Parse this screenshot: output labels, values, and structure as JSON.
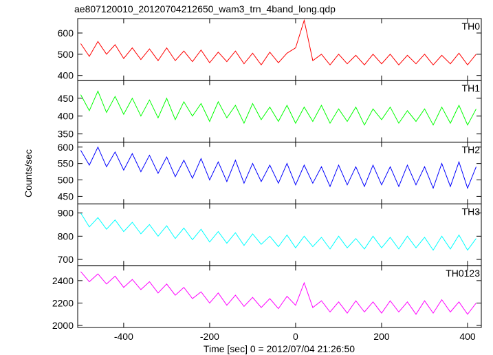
{
  "chart_data": {
    "type": "line",
    "title": "ae807120010_20120704212650_wam3_trn_4band_long.qdp",
    "xlabel": "Time [sec] 0 = 2012/07/04 21:26:50",
    "ylabel": "Counts/sec",
    "xlim": [
      -507,
      432
    ],
    "xticks": [
      -400,
      -200,
      0,
      200,
      400
    ],
    "x": [
      -500,
      -480,
      -460,
      -440,
      -420,
      -400,
      -380,
      -360,
      -340,
      -320,
      -300,
      -280,
      -260,
      -240,
      -220,
      -200,
      -180,
      -160,
      -140,
      -120,
      -100,
      -80,
      -60,
      -40,
      -20,
      0,
      20,
      40,
      60,
      80,
      100,
      120,
      140,
      160,
      180,
      200,
      220,
      240,
      260,
      280,
      300,
      320,
      340,
      360,
      380,
      400,
      420
    ],
    "series": [
      {
        "name": "TH0",
        "color": "#ff0000",
        "ylim": [
          377,
          668
        ],
        "yticks": [
          400,
          500,
          600
        ],
        "values": [
          550,
          490,
          560,
          500,
          545,
          480,
          530,
          475,
          525,
          470,
          530,
          470,
          515,
          465,
          520,
          460,
          510,
          465,
          515,
          455,
          505,
          450,
          510,
          460,
          505,
          530,
          660,
          470,
          500,
          450,
          500,
          455,
          495,
          450,
          500,
          455,
          500,
          450,
          495,
          455,
          500,
          450,
          495,
          455,
          505,
          450,
          500
        ]
      },
      {
        "name": "TH1",
        "color": "#00ff00",
        "ylim": [
          327,
          500
        ],
        "yticks": [
          350,
          400,
          450
        ],
        "values": [
          460,
          415,
          470,
          410,
          455,
          405,
          450,
          400,
          445,
          395,
          450,
          390,
          440,
          400,
          435,
          385,
          440,
          395,
          430,
          380,
          435,
          390,
          425,
          385,
          430,
          380,
          425,
          385,
          430,
          380,
          420,
          385,
          425,
          375,
          420,
          390,
          425,
          380,
          415,
          385,
          420,
          375,
          425,
          380,
          430,
          375,
          420
        ]
      },
      {
        "name": "TH2",
        "color": "#0000ff",
        "ylim": [
          427,
          615
        ],
        "yticks": [
          450,
          500,
          550,
          600
        ],
        "values": [
          590,
          545,
          600,
          540,
          585,
          530,
          580,
          525,
          575,
          520,
          570,
          510,
          560,
          505,
          565,
          500,
          555,
          495,
          560,
          490,
          550,
          495,
          545,
          490,
          550,
          485,
          545,
          490,
          540,
          480,
          545,
          485,
          540,
          480,
          545,
          485,
          540,
          480,
          545,
          485,
          540,
          475,
          550,
          480,
          555,
          475,
          540
        ]
      },
      {
        "name": "TH3",
        "color": "#00ffff",
        "ylim": [
          673,
          939
        ],
        "yticks": [
          700,
          800,
          900
        ],
        "values": [
          900,
          840,
          880,
          830,
          870,
          820,
          860,
          810,
          850,
          800,
          845,
          790,
          835,
          785,
          830,
          775,
          820,
          770,
          815,
          760,
          810,
          765,
          800,
          755,
          805,
          750,
          800,
          755,
          795,
          745,
          800,
          750,
          790,
          745,
          800,
          750,
          795,
          745,
          800,
          750,
          795,
          740,
          800,
          745,
          805,
          740,
          790
        ]
      },
      {
        "name": "TH0123",
        "color": "#ff00ff",
        "ylim": [
          1982,
          2533
        ],
        "yticks": [
          2000,
          2200,
          2400
        ],
        "values": [
          2480,
          2390,
          2460,
          2370,
          2440,
          2340,
          2410,
          2320,
          2390,
          2290,
          2370,
          2270,
          2340,
          2240,
          2300,
          2200,
          2290,
          2180,
          2270,
          2170,
          2250,
          2160,
          2240,
          2150,
          2260,
          2180,
          2380,
          2160,
          2220,
          2120,
          2210,
          2110,
          2220,
          2120,
          2210,
          2110,
          2220,
          2120,
          2210,
          2100,
          2220,
          2110,
          2230,
          2120,
          2210,
          2100,
          2200
        ]
      }
    ]
  }
}
